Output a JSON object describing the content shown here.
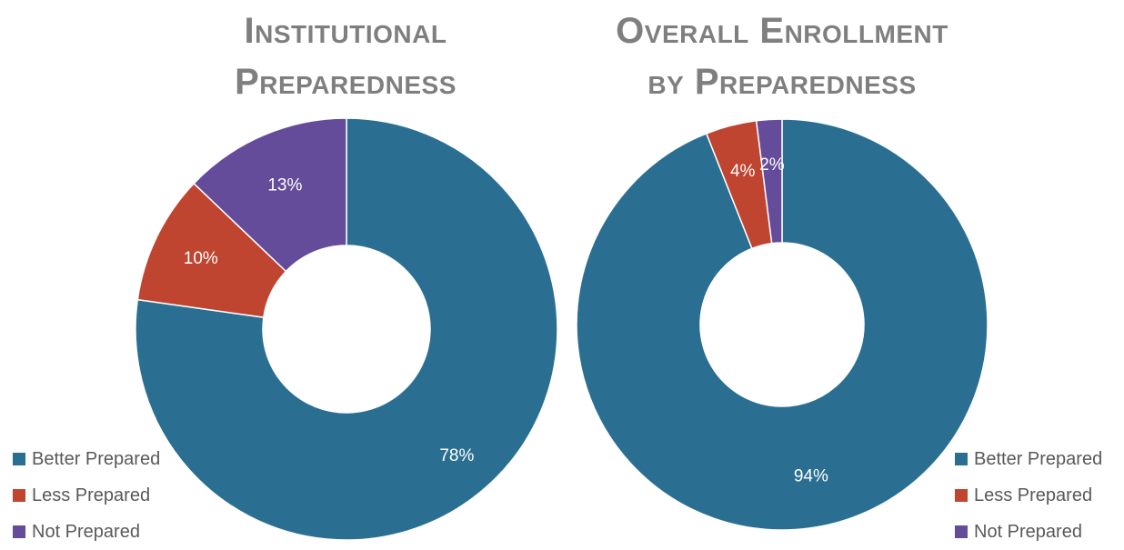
{
  "chart_data": [
    {
      "type": "pie",
      "title_line1": "Institutional",
      "title_line2": "Preparedness",
      "categories": [
        "Better Prepared",
        "Less Prepared",
        "Not Prepared"
      ],
      "values": [
        78,
        10,
        13
      ],
      "data_labels": [
        "78%",
        "10%",
        "13%"
      ],
      "colors": [
        "#2a6f92",
        "#bf4530",
        "#644c9a"
      ],
      "donut": true,
      "legend": "bottom-left"
    },
    {
      "type": "pie",
      "title_line1": "Overall Enrollment",
      "title_line2": "by Preparedness",
      "categories": [
        "Better Prepared",
        "Less Prepared",
        "Not Prepared"
      ],
      "values": [
        94,
        4,
        2
      ],
      "data_labels": [
        "94%",
        "4%",
        "2%"
      ],
      "colors": [
        "#2a6f92",
        "#bf4530",
        "#644c9a"
      ],
      "donut": true,
      "legend": "bottom-right"
    }
  ]
}
